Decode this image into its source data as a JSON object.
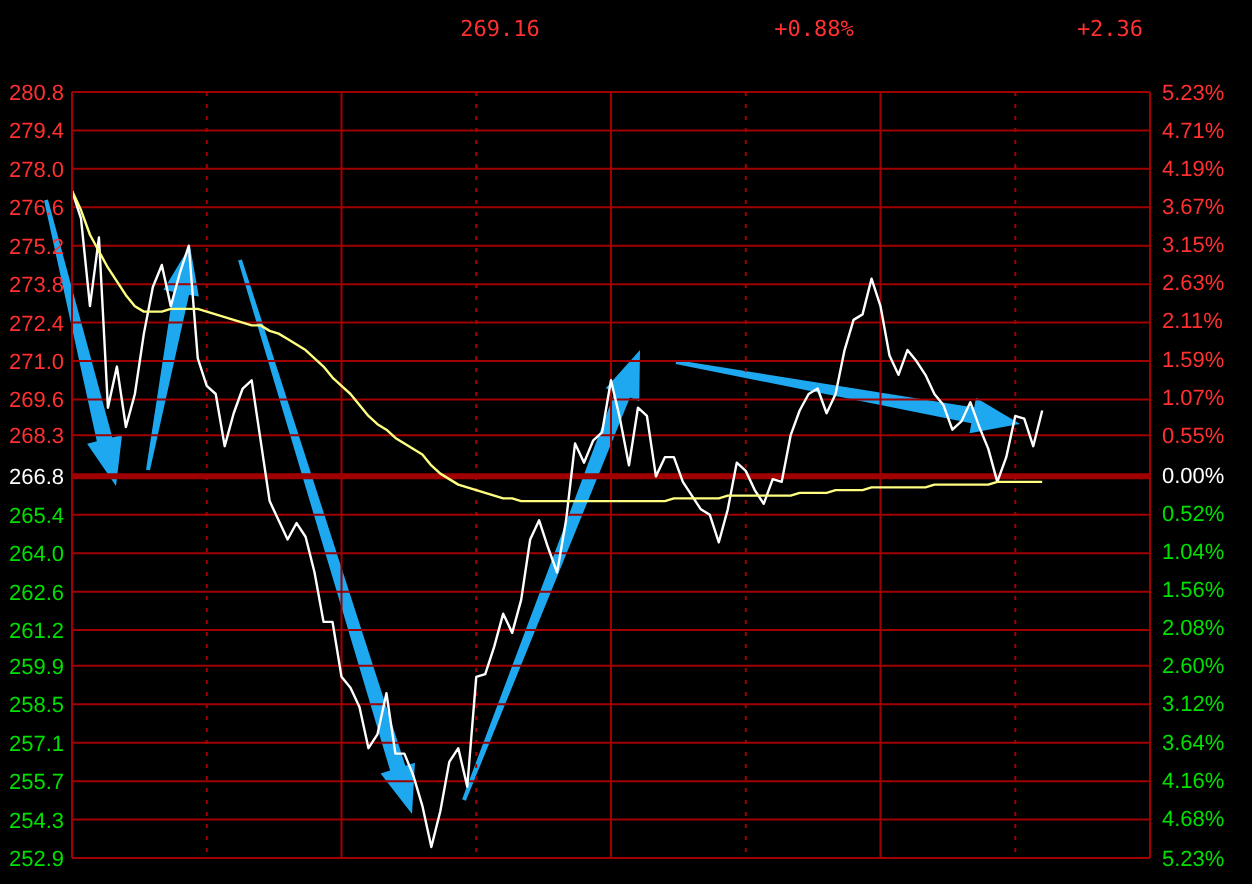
{
  "chart_data": {
    "type": "line",
    "annotations": [
      "269.16",
      "+0.88%",
      "+2.36"
    ],
    "categories": [
      null,
      null,
      null,
      null,
      null,
      null,
      null,
      null,
      null,
      null,
      null,
      null,
      null,
      null,
      null,
      null,
      null,
      null,
      null,
      null,
      null,
      null,
      null,
      null,
      null,
      null,
      null,
      null,
      null,
      null,
      null,
      null,
      null,
      null,
      null,
      null,
      null,
      null,
      null,
      null,
      null,
      null,
      null,
      null,
      null,
      null,
      null,
      null,
      null,
      null,
      null,
      null,
      null,
      null,
      null,
      null,
      null,
      null,
      null,
      null,
      null,
      null,
      null,
      null,
      null,
      null,
      null,
      null,
      null,
      null,
      null,
      null,
      null,
      null,
      null,
      null,
      null,
      null,
      null,
      null,
      null,
      null,
      null,
      null,
      null,
      null,
      null,
      null,
      null,
      null,
      null,
      null,
      null,
      null,
      null,
      null,
      null,
      null,
      null,
      null,
      null,
      null,
      null,
      null,
      null,
      null,
      null,
      null,
      null,
      null,
      null,
      null,
      null,
      null,
      null,
      null,
      null,
      null,
      null,
      null,
      null
    ],
    "series": [
      {
        "color": "#ffffff",
        "values": [
          277.2,
          276.2,
          273.0,
          275.5,
          269.3,
          270.8,
          268.6,
          269.8,
          272.0,
          273.7,
          274.5,
          273.0,
          274.2,
          275.2,
          271.1,
          270.1,
          269.8,
          267.9,
          269.1,
          270.0,
          270.3,
          268.1,
          265.9,
          265.2,
          264.5,
          265.1,
          264.6,
          263.3,
          261.5,
          261.5,
          259.5,
          259.1,
          258.4,
          256.9,
          257.4,
          258.9,
          256.7,
          256.7,
          255.9,
          254.8,
          253.3,
          254.6,
          256.4,
          256.9,
          255.5,
          259.5,
          259.6,
          260.6,
          261.8,
          261.1,
          262.3,
          264.5,
          265.2,
          264.2,
          263.3,
          265.2,
          268.0,
          267.3,
          268.1,
          268.4,
          270.3,
          268.9,
          267.2,
          269.3,
          269.0,
          266.8,
          267.5,
          267.5,
          266.6,
          266.1,
          265.6,
          265.4,
          264.4,
          265.6,
          267.3,
          267.0,
          266.3,
          265.8,
          266.7,
          266.6,
          268.3,
          269.2,
          269.8,
          270.0,
          269.1,
          269.8,
          271.4,
          272.5,
          272.7,
          274.0,
          273.0,
          271.2,
          270.5,
          271.4,
          271.0,
          270.5,
          269.8,
          269.4,
          268.5,
          268.8,
          269.5,
          268.6,
          267.8,
          266.6,
          267.5,
          269.0,
          268.9,
          267.9,
          269.2,
          null,
          null,
          null,
          null,
          null,
          null,
          null,
          null,
          null,
          null,
          null,
          null
        ]
      },
      {
        "color": "#ffff80",
        "values": [
          277.2,
          276.5,
          275.6,
          275.0,
          274.4,
          273.9,
          273.4,
          273.0,
          272.8,
          272.8,
          272.8,
          272.9,
          272.9,
          272.9,
          272.9,
          272.8,
          272.7,
          272.6,
          272.5,
          272.4,
          272.3,
          272.3,
          272.1,
          272.0,
          271.8,
          271.6,
          271.4,
          271.1,
          270.8,
          270.4,
          270.1,
          269.8,
          269.4,
          269.0,
          268.7,
          268.5,
          268.2,
          268.0,
          267.8,
          267.6,
          267.2,
          266.9,
          266.7,
          266.5,
          266.4,
          266.3,
          266.2,
          266.1,
          266.0,
          266.0,
          265.9,
          265.9,
          265.9,
          265.9,
          265.9,
          265.9,
          265.9,
          265.9,
          265.9,
          265.9,
          265.9,
          265.9,
          265.9,
          265.9,
          265.9,
          265.9,
          265.9,
          266.0,
          266.0,
          266.0,
          266.0,
          266.0,
          266.0,
          266.1,
          266.1,
          266.1,
          266.1,
          266.1,
          266.1,
          266.1,
          266.1,
          266.2,
          266.2,
          266.2,
          266.2,
          266.3,
          266.3,
          266.3,
          266.3,
          266.4,
          266.4,
          266.4,
          266.4,
          266.4,
          266.4,
          266.4,
          266.5,
          266.5,
          266.5,
          266.5,
          266.5,
          266.5,
          266.5,
          266.6,
          266.6,
          266.6,
          266.6,
          266.6,
          266.6,
          null,
          null,
          null,
          null,
          null,
          null,
          null,
          null,
          null,
          null,
          null,
          null
        ]
      }
    ],
    "ylim": [
      252.9,
      280.8
    ],
    "yticks": [
      252.9,
      254.3,
      255.7,
      257.1,
      258.5,
      259.9,
      261.2,
      262.6,
      {
        "value": 264,
        "label": "264.0"
      },
      265.4,
      266.8,
      268.3,
      269.6,
      {
        "value": 271,
        "label": "271.0"
      },
      272.4,
      273.8,
      275.2,
      276.6,
      {
        "value": 278,
        "label": "278.0"
      },
      279.4,
      280.8
    ],
    "y2lim": [
      -5.23,
      5.23
    ],
    "y2ticks": [
      {
        "value": -5.23,
        "label": "5.23%"
      },
      {
        "value": -4.68,
        "label": "4.68%"
      },
      {
        "value": -4.16,
        "label": "4.16%"
      },
      {
        "value": -3.64,
        "label": "3.64%"
      },
      {
        "value": -3.12,
        "label": "3.12%"
      },
      {
        "value": -2.6,
        "label": "2.60%"
      },
      {
        "value": -2.08,
        "label": "2.08%"
      },
      {
        "value": -1.56,
        "label": "1.56%"
      },
      {
        "value": -1.04,
        "label": "1.04%"
      },
      {
        "value": -0.52,
        "label": "0.52%"
      },
      {
        "value": 0,
        "label": "0.00%"
      },
      {
        "value": 0.55,
        "label": "0.55%"
      },
      {
        "value": 1.07,
        "label": "1.07%"
      },
      {
        "value": 1.59,
        "label": "1.59%"
      },
      {
        "value": 2.11,
        "label": "2.11%"
      },
      {
        "value": 2.63,
        "label": "2.63%"
      },
      {
        "value": 3.15,
        "label": "3.15%"
      },
      {
        "value": 3.67,
        "label": "3.67%"
      },
      {
        "value": 4.19,
        "label": "4.19%"
      },
      {
        "value": 4.71,
        "label": "4.71%"
      },
      {
        "value": 5.23,
        "label": "5.23%"
      }
    ],
    "ref_lines": [
      {
        "axis": "y",
        "value": 266.8,
        "color": "#a00000"
      }
    ],
    "grid": true,
    "legend": false,
    "marker": "none",
    "line_style": "solid"
  }
}
